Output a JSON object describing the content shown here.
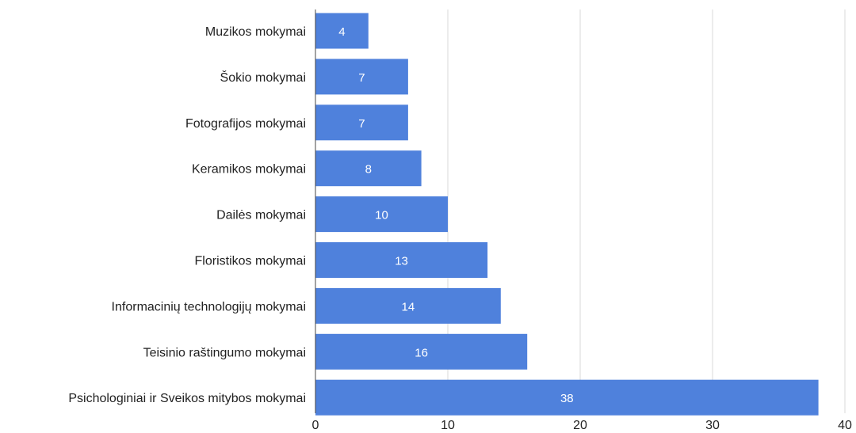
{
  "chart_data": {
    "type": "bar",
    "orientation": "horizontal",
    "categories": [
      "Muzikos mokymai",
      "Šokio mokymai",
      "Fotografijos mokymai",
      "Keramikos mokymai",
      "Dailės mokymai",
      "Floristikos mokymai",
      "Informacinių technologijų mokymai",
      "Teisinio raštingumo mokymai",
      "Psichologiniai ir Sveikos mitybos mokymai"
    ],
    "values": [
      4,
      7,
      7,
      8,
      10,
      13,
      14,
      16,
      38
    ],
    "data_labels": [
      "4",
      "7",
      "7",
      "8",
      "10",
      "13",
      "14",
      "16",
      "38"
    ],
    "xlim": [
      0,
      40
    ],
    "x_ticks": [
      0,
      10,
      20,
      30,
      40
    ],
    "x_tick_labels": [
      "0",
      "10",
      "20",
      "30",
      "40"
    ],
    "grid": true,
    "legend": "none",
    "bar_color": "#4f81dc",
    "label_color": "#ffffff"
  }
}
